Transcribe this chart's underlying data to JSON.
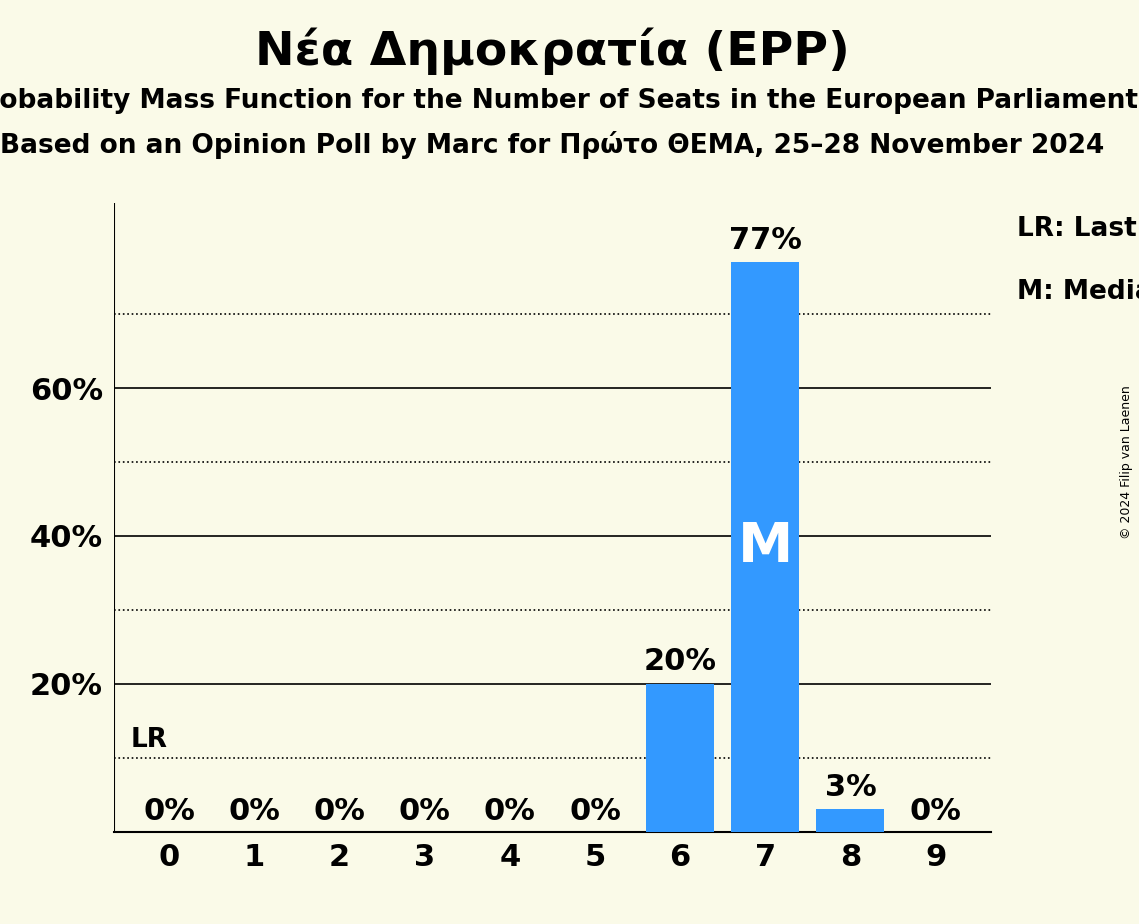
{
  "title": "Νέα Δημοκρατία (EPP)",
  "subtitle1": "Probability Mass Function for the Number of Seats in the European Parliament",
  "subtitle2": "Based on an Opinion Poll by Marc for Πρώτο ΘΕΜΑ, 25–28 November 2024",
  "copyright": "© 2024 Filip van Laenen",
  "categories": [
    0,
    1,
    2,
    3,
    4,
    5,
    6,
    7,
    8,
    9
  ],
  "values": [
    0,
    0,
    0,
    0,
    0,
    0,
    0.2,
    0.77,
    0.03,
    0
  ],
  "bar_color": "#3399ff",
  "background_color": "#fafae8",
  "median_seat": 7,
  "lr_value": 0.1,
  "lr_label": "LR",
  "median_label": "M",
  "legend_lr": "LR: Last Result",
  "legend_m": "M: Median",
  "bar_labels": [
    "0%",
    "0%",
    "0%",
    "0%",
    "0%",
    "0%",
    "20%",
    "77%",
    "3%",
    "0%"
  ],
  "ylim": [
    0,
    0.85
  ],
  "yticks": [
    0.2,
    0.4,
    0.6
  ],
  "ytick_labels": [
    "20%",
    "40%",
    "60%"
  ],
  "dotted_gridlines": [
    0.1,
    0.3,
    0.5,
    0.7
  ],
  "solid_gridlines": [
    0.2,
    0.4,
    0.6
  ],
  "title_fontsize": 34,
  "subtitle_fontsize": 19,
  "label_fontsize": 19,
  "tick_fontsize": 22,
  "bar_label_fontsize": 22,
  "legend_fontsize": 19,
  "copyright_fontsize": 9
}
